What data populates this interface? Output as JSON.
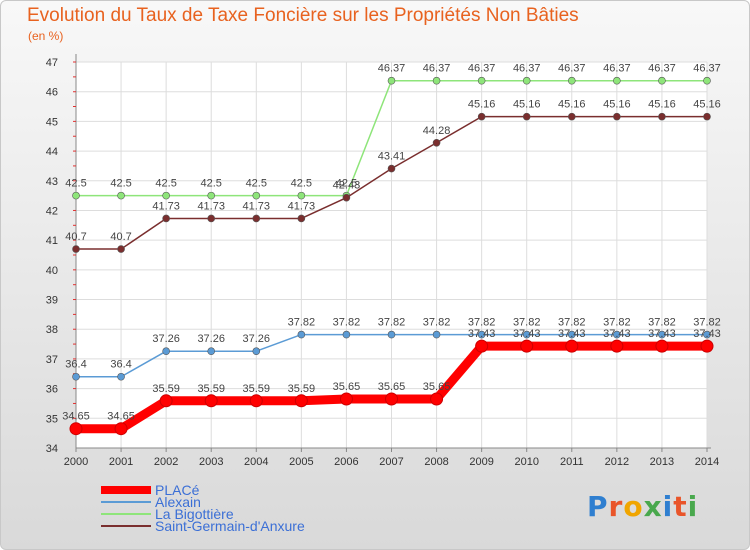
{
  "chart_data": {
    "type": "line",
    "title": "Evolution du Taux de Taxe Foncière sur les Propriétés Non Bâties",
    "unit_label": "(en %)",
    "x": [
      "2000",
      "2001",
      "2002",
      "2003",
      "2004",
      "2005",
      "2006",
      "2007",
      "2008",
      "2009",
      "2010",
      "2011",
      "2012",
      "2013",
      "2014"
    ],
    "ylim": [
      34,
      47
    ],
    "yticks": [
      "34",
      "35",
      "36",
      "37",
      "38",
      "39",
      "40",
      "41",
      "42",
      "43",
      "44",
      "45",
      "46",
      "47"
    ],
    "grid": true,
    "series": [
      {
        "name": "PLACé",
        "color": "#ff0000",
        "values": [
          34.65,
          34.65,
          35.59,
          35.59,
          35.59,
          35.59,
          35.65,
          35.65,
          35.65,
          37.43,
          37.43,
          37.43,
          37.43,
          37.43,
          37.43
        ],
        "labels": [
          "34.65",
          "34.65",
          "35.59",
          "35.59",
          "35.59",
          "35.59",
          "35.65",
          "35.65",
          "35.65",
          "37.43",
          "37.43",
          "37.43",
          "37.43",
          "37.43",
          "37.43"
        ]
      },
      {
        "name": "Alexain",
        "color": "#5b9bd5",
        "values": [
          36.4,
          36.4,
          37.26,
          37.26,
          37.26,
          37.82,
          37.82,
          37.82,
          37.82,
          37.82,
          37.82,
          37.82,
          37.82,
          37.82,
          37.82
        ],
        "labels": [
          "36.4",
          "36.4",
          "37.26",
          "37.26",
          "37.26",
          "37.82",
          "37.82",
          "37.82",
          "37.82",
          "37.82",
          "37.82",
          "37.82",
          "37.82",
          "37.82",
          "37.82"
        ]
      },
      {
        "name": "La Bigottière",
        "color": "#8ee57a",
        "values": [
          42.5,
          42.5,
          42.5,
          42.5,
          42.5,
          42.5,
          42.5,
          46.37,
          46.37,
          46.37,
          46.37,
          46.37,
          46.37,
          46.37,
          46.37
        ],
        "labels": [
          "42.5",
          "42.5",
          "42.5",
          "42.5",
          "42.5",
          "42.5",
          "42.5",
          "46.37",
          "46.37",
          "46.37",
          "46.37",
          "46.37",
          "46.37",
          "46.37",
          "46.37"
        ]
      },
      {
        "name": "Saint-Germain-d'Anxure",
        "color": "#7a2e2e",
        "values": [
          40.7,
          40.7,
          41.73,
          41.73,
          41.73,
          41.73,
          42.43,
          43.41,
          44.28,
          45.16,
          45.16,
          45.16,
          45.16,
          45.16,
          45.16
        ],
        "labels": [
          "40.7",
          "40.7",
          "41.73",
          "41.73",
          "41.73",
          "41.73",
          "42.43",
          "43.41",
          "44.28",
          "45.16",
          "45.16",
          "45.16",
          "45.16",
          "45.16",
          "45.16"
        ]
      }
    ]
  },
  "logo": {
    "text": "Proxiti"
  }
}
